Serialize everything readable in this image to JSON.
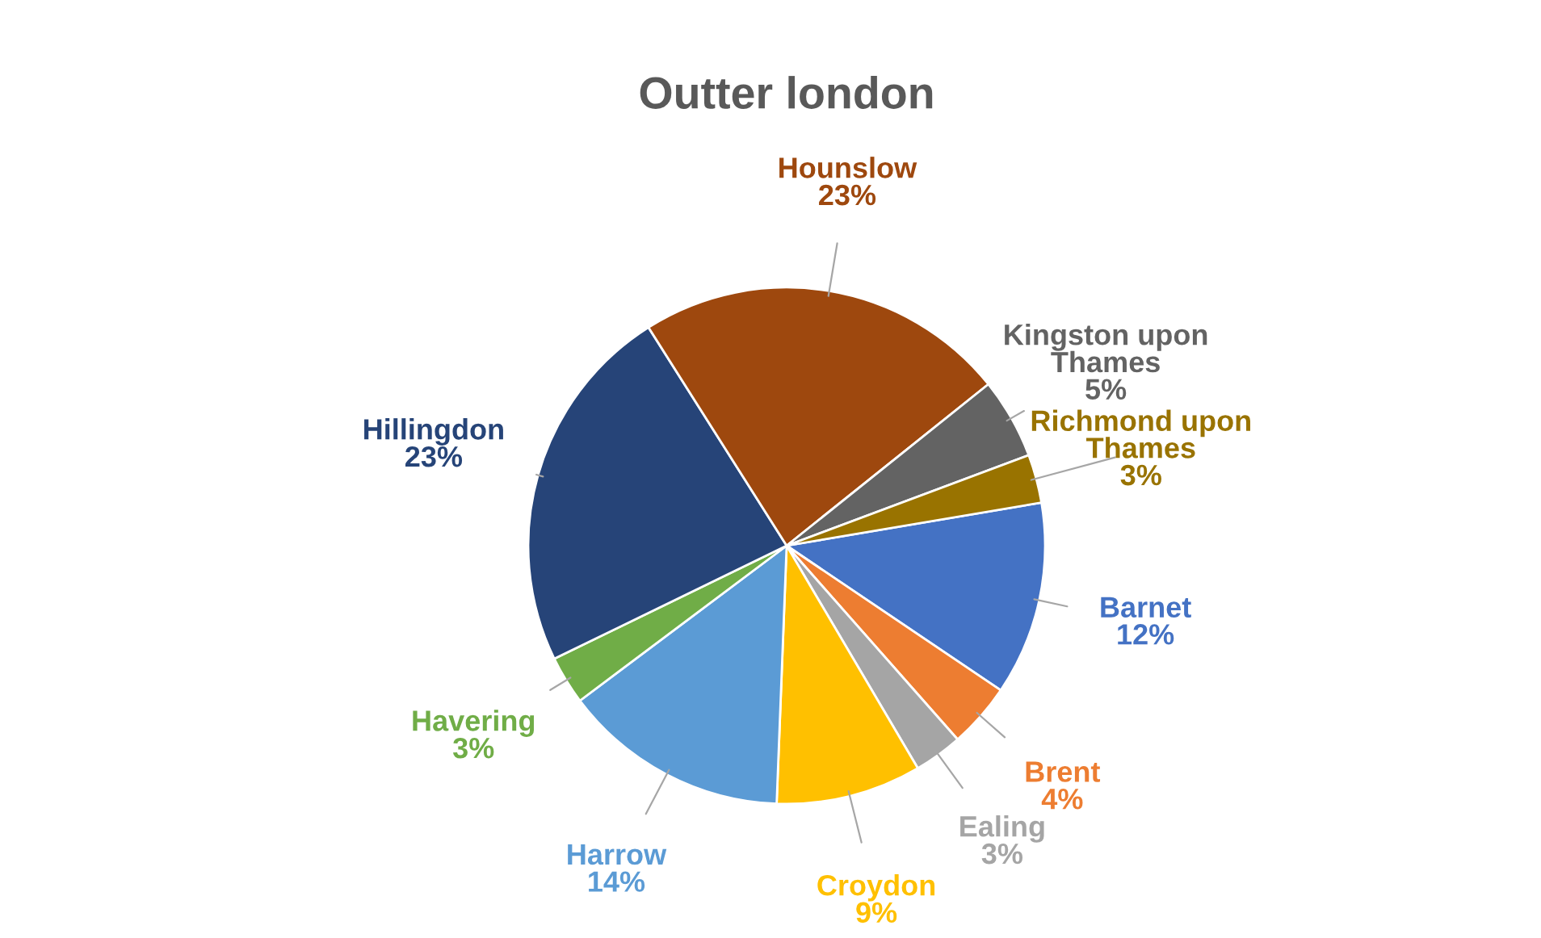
{
  "chart_data": {
    "type": "pie",
    "title": "Outter london",
    "categories": [
      "Barnet",
      "Brent",
      "Ealing",
      "Croydon",
      "Harrow",
      "Havering",
      "Hillingdon",
      "Hounslow",
      "Kingston upon Thames",
      "Richmond upon Thames"
    ],
    "values": [
      12,
      4,
      3,
      9,
      14,
      3,
      23,
      23,
      5,
      3
    ],
    "colors": [
      "#4472c4",
      "#ed7d31",
      "#a5a5a5",
      "#ffc000",
      "#5b9bd5",
      "#70ad47",
      "#264478",
      "#9e480e",
      "#636363",
      "#997300"
    ],
    "value_labels": [
      "12%",
      "4%",
      "3%",
      "9%",
      "14%",
      "3%",
      "23%",
      "23%",
      "5%",
      "3%"
    ],
    "legend": false
  }
}
